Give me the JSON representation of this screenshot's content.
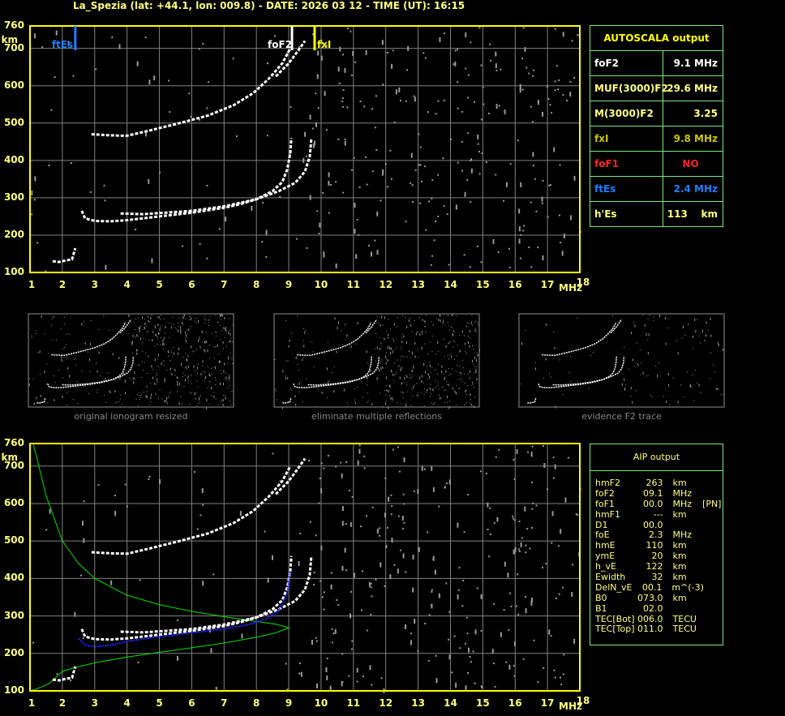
{
  "header": {
    "title": "La_Spezia (lat: +44.1, lon: 009.8) - DATE: 2026 03 12 - TIME (UT): 16:15"
  },
  "colors": {
    "axis": "#ffff00",
    "grid": "#808080",
    "panel_border": "#7fe87f",
    "text": "#ffff80",
    "ftEs": "#1e7fff",
    "foF1": "#ff2020",
    "fxI": "#c8c800",
    "profile": "#00e000",
    "true_height": "#2020ff",
    "trace": "#ffffff"
  },
  "axes": {
    "y_unit": "km",
    "x_unit": "MHz",
    "y_ticks": [
      "760",
      "700",
      "600",
      "500",
      "400",
      "300",
      "200",
      "100"
    ],
    "x_ticks": [
      "1",
      "2",
      "3",
      "4",
      "5",
      "6",
      "7",
      "8",
      "9",
      "10",
      "11",
      "12",
      "13",
      "14",
      "15",
      "16",
      "17",
      "18"
    ]
  },
  "markers": {
    "ftEs": {
      "label": "ftEs",
      "freq": 2.4
    },
    "foF2": {
      "label": "foF2",
      "freq": 9.1
    },
    "fxI": {
      "label": "fxI",
      "freq": 9.8
    }
  },
  "autoscala": {
    "title": "AUTOSCALA output",
    "rows": [
      {
        "key": "foF2",
        "value": "9.1 MHz",
        "color": "#ffffff"
      },
      {
        "key": "MUF(3000)F2",
        "value": "29.6 MHz",
        "color": "#ffff80"
      },
      {
        "key": "M(3000)F2",
        "value": "3.25",
        "color": "#ffff80"
      },
      {
        "key": "fxI",
        "value": "9.8 MHz",
        "color": "#c8c800"
      },
      {
        "key": "foF1",
        "value": "NO",
        "color": "#ff2020"
      },
      {
        "key": "ftEs",
        "value": "2.4 MHz",
        "color": "#1e7fff"
      },
      {
        "key": "h'Es",
        "value": "113    km",
        "color": "#ffff80"
      }
    ]
  },
  "thumbnails": [
    {
      "caption": "original ionogram resized"
    },
    {
      "caption": "eliminate multiple reflections"
    },
    {
      "caption": "evidence F2 trace"
    }
  ],
  "aip": {
    "title": "AIP output",
    "rows": [
      {
        "key": "hmF2",
        "value": "263",
        "unit": "km",
        "extra": ""
      },
      {
        "key": "foF2",
        "value": "09.1",
        "unit": "MHz",
        "extra": ""
      },
      {
        "key": "foF1",
        "value": "00.0",
        "unit": "MHz",
        "extra": "[PN]"
      },
      {
        "key": "hmF1",
        "value": "---",
        "unit": "km",
        "extra": ""
      },
      {
        "key": "D1",
        "value": "00.0",
        "unit": "",
        "extra": ""
      },
      {
        "key": "foE",
        "value": "2.3",
        "unit": "MHz",
        "extra": ""
      },
      {
        "key": "hmE",
        "value": "110",
        "unit": "km",
        "extra": ""
      },
      {
        "key": "ymE",
        "value": "20",
        "unit": "km",
        "extra": ""
      },
      {
        "key": "h_vE",
        "value": "122",
        "unit": "km",
        "extra": ""
      },
      {
        "key": "Ewidth",
        "value": "32",
        "unit": "km",
        "extra": ""
      },
      {
        "key": "DelN_vE",
        "value": "00.1",
        "unit": "m^(-3)",
        "extra": ""
      },
      {
        "key": "B0",
        "value": "073.0",
        "unit": "km",
        "extra": ""
      },
      {
        "key": "B1",
        "value": "02.0",
        "unit": "",
        "extra": ""
      },
      {
        "key": "TEC[Bot]",
        "value": "006.0",
        "unit": "TECU",
        "extra": ""
      },
      {
        "key": "TEC[Top]",
        "value": "011.0",
        "unit": "TECU",
        "extra": ""
      }
    ]
  },
  "chart_data": {
    "type": "scatter",
    "xlabel": "MHz",
    "ylabel": "km",
    "xlim": [
      1,
      18
    ],
    "ylim": [
      100,
      760
    ],
    "grid": true,
    "series": [
      {
        "id": "o_trace",
        "points": [
          [
            2.6,
            265
          ],
          [
            2.7,
            245
          ],
          [
            3,
            238
          ],
          [
            3.5,
            237
          ],
          [
            4,
            240
          ],
          [
            5,
            250
          ],
          [
            6,
            260
          ],
          [
            7,
            273
          ],
          [
            7.5,
            283
          ],
          [
            8,
            296
          ],
          [
            8.5,
            318
          ],
          [
            8.8,
            342
          ],
          [
            8.95,
            375
          ],
          [
            9.05,
            420
          ],
          [
            9.08,
            460
          ]
        ]
      },
      {
        "id": "x_trace",
        "points": [
          [
            3.8,
            258
          ],
          [
            4.5,
            256
          ],
          [
            6,
            265
          ],
          [
            7,
            277
          ],
          [
            8,
            296
          ],
          [
            8.7,
            318
          ],
          [
            9.2,
            340
          ],
          [
            9.5,
            370
          ],
          [
            9.65,
            410
          ],
          [
            9.7,
            460
          ]
        ]
      },
      {
        "id": "multiple_o",
        "points": [
          [
            2.9,
            470
          ],
          [
            3.5,
            467
          ],
          [
            4,
            466
          ],
          [
            4.6,
            478
          ],
          [
            5.5,
            497
          ],
          [
            6.5,
            520
          ],
          [
            7.3,
            548
          ],
          [
            7.9,
            580
          ],
          [
            8.4,
            620
          ],
          [
            8.8,
            660
          ],
          [
            9.05,
            700
          ]
        ]
      },
      {
        "id": "multiple_x",
        "points": [
          [
            8.6,
            625
          ],
          [
            9.0,
            660
          ],
          [
            9.3,
            695
          ],
          [
            9.5,
            720
          ]
        ]
      },
      {
        "id": "es_trace",
        "points": [
          [
            1.7,
            130
          ],
          [
            1.9,
            128
          ],
          [
            2.1,
            132
          ],
          [
            2.3,
            135
          ],
          [
            2.4,
            165
          ]
        ]
      }
    ],
    "profile": [
      [
        1.1,
        760
      ],
      [
        1.5,
        620
      ],
      [
        2,
        500
      ],
      [
        2.5,
        440
      ],
      [
        3,
        400
      ],
      [
        4,
        355
      ],
      [
        5,
        330
      ],
      [
        6,
        312
      ],
      [
        7,
        298
      ],
      [
        8,
        285
      ],
      [
        8.6,
        278
      ],
      [
        9.0,
        268
      ],
      [
        8.6,
        255
      ],
      [
        8,
        243
      ],
      [
        7,
        228
      ],
      [
        6,
        215
      ],
      [
        5,
        203
      ],
      [
        4,
        190
      ],
      [
        3,
        175
      ],
      [
        2.3,
        160
      ],
      [
        2,
        152
      ],
      [
        1.6,
        120
      ],
      [
        1.2,
        105
      ],
      [
        1,
        100
      ]
    ],
    "true_height": [
      [
        2.5,
        240
      ],
      [
        2.7,
        222
      ],
      [
        3,
        218
      ],
      [
        3.5,
        222
      ],
      [
        4,
        232
      ],
      [
        5,
        245
      ],
      [
        6,
        255
      ],
      [
        7,
        265
      ],
      [
        7.8,
        278
      ],
      [
        8.3,
        292
      ],
      [
        8.7,
        315
      ],
      [
        8.95,
        360
      ],
      [
        9.05,
        420
      ]
    ]
  }
}
